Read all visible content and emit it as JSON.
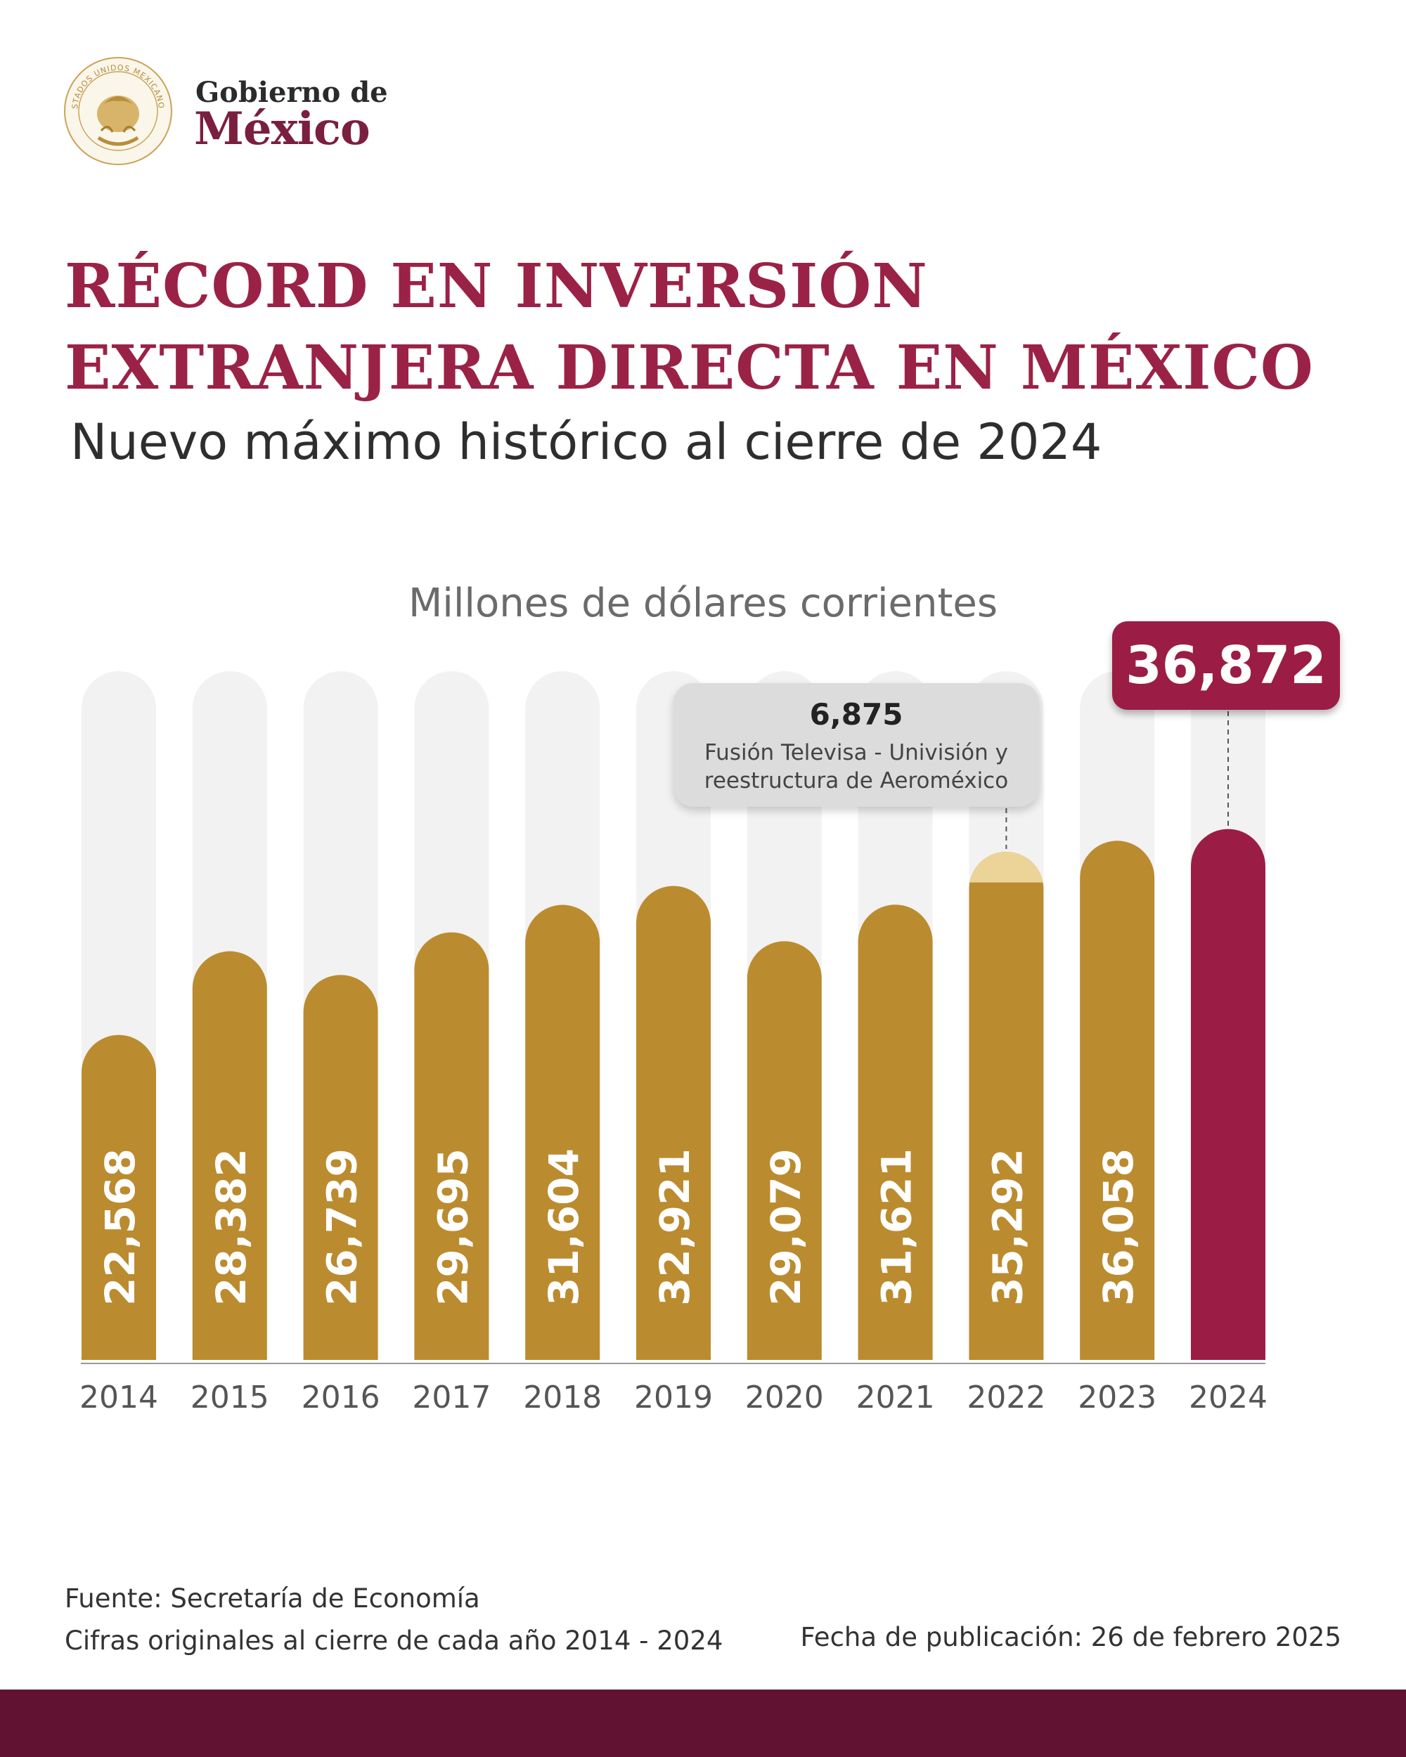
{
  "brand": {
    "small": "Gobierno de",
    "large": "México",
    "seal_text": "ESTADOS UNIDOS MEXICANOS"
  },
  "header": {
    "title": "RÉCORD EN INVERSIÓN EXTRANJERA DIRECTA EN MÉXICO",
    "subtitle": "Nuevo máximo histórico al cierre de 2024"
  },
  "chart_data": {
    "type": "bar",
    "title": "RÉCORD EN INVERSIÓN EXTRANJERA DIRECTA EN MÉXICO",
    "ylabel": "Millones de dólares corrientes",
    "xlabel": "",
    "categories": [
      "2014",
      "2015",
      "2016",
      "2017",
      "2018",
      "2019",
      "2020",
      "2021",
      "2022",
      "2023",
      "2024"
    ],
    "values": [
      22568,
      28382,
      26739,
      29695,
      31604,
      32921,
      29079,
      31621,
      35292,
      36058,
      36872
    ],
    "labels": [
      "22,568",
      "28,382",
      "26,739",
      "29,695",
      "31,604",
      "32,921",
      "29,079",
      "31,621",
      "35,292",
      "36,058",
      "36,872"
    ],
    "ylim": [
      0,
      40000
    ],
    "grid": false,
    "highlight": {
      "category": "2024",
      "label": "36,872"
    },
    "annotation": {
      "category": "2022",
      "value": 6875,
      "value_label": "6,875",
      "note_line1": "Fusión Televisa - Univisión y",
      "note_line2": "reestructura de Aeroméxico"
    },
    "colors": {
      "bar": "#bb8b2f",
      "highlight": "#9b1d45",
      "segment": "#ecd498",
      "track": "#f2f2f2"
    }
  },
  "footer": {
    "source": "Fuente: Secretaría de Economía",
    "note": "Cifras originales al cierre de cada año 2014 - 2024",
    "published": "Fecha de publicación: 26 de febrero 2025",
    "bar_color": "#611232"
  }
}
